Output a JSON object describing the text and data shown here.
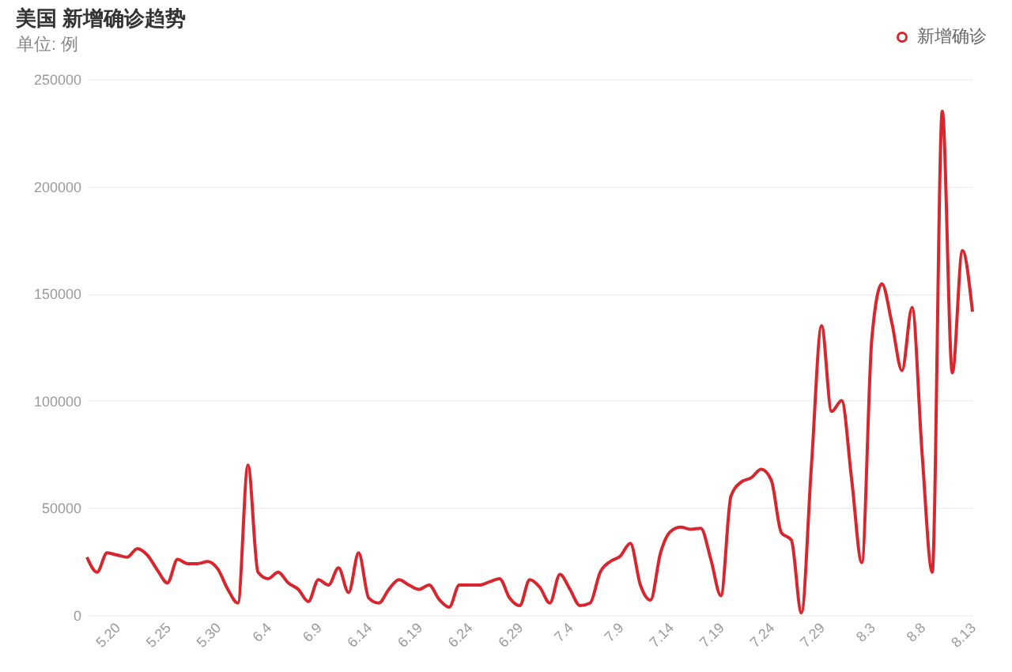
{
  "chart_data": {
    "type": "line",
    "title": "美国 新增确诊趋势",
    "ylabel": "单位: 例",
    "categories": [
      null,
      null,
      null,
      "5.20",
      null,
      null,
      null,
      null,
      "5.25",
      null,
      null,
      null,
      null,
      "5.30",
      null,
      null,
      null,
      null,
      "6.4",
      null,
      null,
      null,
      null,
      "6.9",
      null,
      null,
      null,
      null,
      "6.14",
      null,
      null,
      null,
      null,
      "6.19",
      null,
      null,
      null,
      null,
      "6.24",
      null,
      null,
      null,
      null,
      "6.29",
      null,
      null,
      null,
      null,
      "7.4",
      null,
      null,
      null,
      null,
      "7.9",
      null,
      null,
      null,
      null,
      "7.14",
      null,
      null,
      null,
      null,
      "7.19",
      null,
      null,
      null,
      null,
      "7.24",
      null,
      null,
      null,
      null,
      "7.29",
      null,
      null,
      null,
      null,
      "8.3",
      null,
      null,
      null,
      null,
      "8.8",
      null,
      null,
      null,
      null,
      "8.13"
    ],
    "series": [
      {
        "name": "新增确诊",
        "color": "#d7262d",
        "values": [
          27000,
          20000,
          29000,
          28000,
          27000,
          31000,
          28000,
          21000,
          15000,
          26000,
          24000,
          24000,
          25000,
          21500,
          12000,
          5600,
          70000,
          20000,
          17000,
          20000,
          15000,
          12000,
          6300,
          16500,
          14000,
          22000,
          10500,
          29000,
          8000,
          5600,
          12000,
          16500,
          14000,
          12000,
          14000,
          7300,
          3700,
          14000,
          14000,
          14000,
          15500,
          17000,
          8000,
          4400,
          16500,
          13000,
          5600,
          19000,
          12000,
          4400,
          5600,
          20000,
          25000,
          27500,
          33500,
          14000,
          7000,
          29000,
          39000,
          41000,
          40000,
          40500,
          26000,
          9000,
          55500,
          62000,
          64000,
          68000,
          63000,
          38500,
          35000,
          1000,
          70000,
          135000,
          95000,
          100000,
          63000,
          24500,
          129000,
          154500,
          136000,
          114000,
          143500,
          75000,
          20000,
          235000,
          113000,
          170000,
          141500
        ]
      }
    ],
    "ylim": [
      0,
      250000
    ],
    "yticks": [
      0,
      50000,
      100000,
      150000,
      200000,
      250000
    ],
    "grid": "y",
    "legend": "top right",
    "marker": "none",
    "line_style": "solid"
  }
}
